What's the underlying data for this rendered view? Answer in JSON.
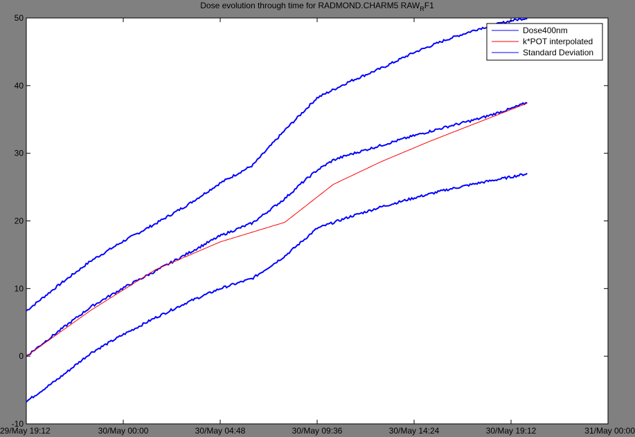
{
  "chart_data": {
    "type": "line",
    "title": "Dose evolution through time for RADMOND.CHARM5 RAW",
    "title_subscript": "R",
    "title_suffix": "F1",
    "xlabel": "",
    "ylabel": "",
    "x_ticks": [
      "29/May 19:12",
      "30/May 00:00",
      "30/May 04:48",
      "30/May 09:36",
      "30/May 14:24",
      "30/May 19:12",
      "31/May 00:00"
    ],
    "xlim_hours": [
      0,
      28.8
    ],
    "ylim": [
      -10,
      50
    ],
    "y_ticks": [
      -10,
      0,
      10,
      20,
      30,
      40,
      50
    ],
    "grid": false,
    "legend_position": "top-right",
    "series": [
      {
        "name": "Dose400nm",
        "color": "#0000ff",
        "x_hours": [
          0,
          1.6,
          3.2,
          4.8,
          6.4,
          8.0,
          9.6,
          11.2,
          12.8,
          13.6,
          14.4,
          15.2,
          16.0,
          17.6,
          19.2,
          20.8,
          22.4,
          24.0,
          24.8
        ],
        "y": [
          0,
          3.7,
          7.3,
          10.1,
          12.6,
          15.2,
          17.8,
          19.7,
          23.3,
          25.5,
          27.5,
          29.0,
          29.8,
          31.2,
          32.6,
          33.9,
          35.1,
          36.6,
          37.5
        ]
      },
      {
        "name": "k*POT interpolated",
        "color": "#ff0000",
        "x_hours": [
          0,
          3.2,
          6.4,
          9.6,
          12.8,
          15.2,
          17.6,
          20.0,
          22.4,
          24.8
        ],
        "y": [
          0,
          6.8,
          12.8,
          16.9,
          19.8,
          25.4,
          28.8,
          31.8,
          34.6,
          37.4
        ]
      },
      {
        "name": "Standard Deviation",
        "color": "#0000ff",
        "x_hours": [
          0,
          1.6,
          3.2,
          4.8,
          6.4,
          8.0,
          9.6,
          11.2,
          12.8,
          14.4,
          16.0,
          17.6,
          19.2,
          20.8,
          22.4,
          24.0,
          24.8
        ],
        "y": [
          6.7,
          10.5,
          14.1,
          17.0,
          19.6,
          22.4,
          25.6,
          28.2,
          33.4,
          38.2,
          40.6,
          42.6,
          44.9,
          46.8,
          48.4,
          49.6,
          50.0
        ],
        "lower_y": [
          -6.7,
          -3.3,
          0.5,
          3.2,
          5.7,
          8.0,
          10.0,
          11.5,
          14.8,
          18.9,
          20.6,
          22.1,
          23.4,
          24.6,
          25.6,
          26.5,
          27.0
        ]
      }
    ]
  }
}
